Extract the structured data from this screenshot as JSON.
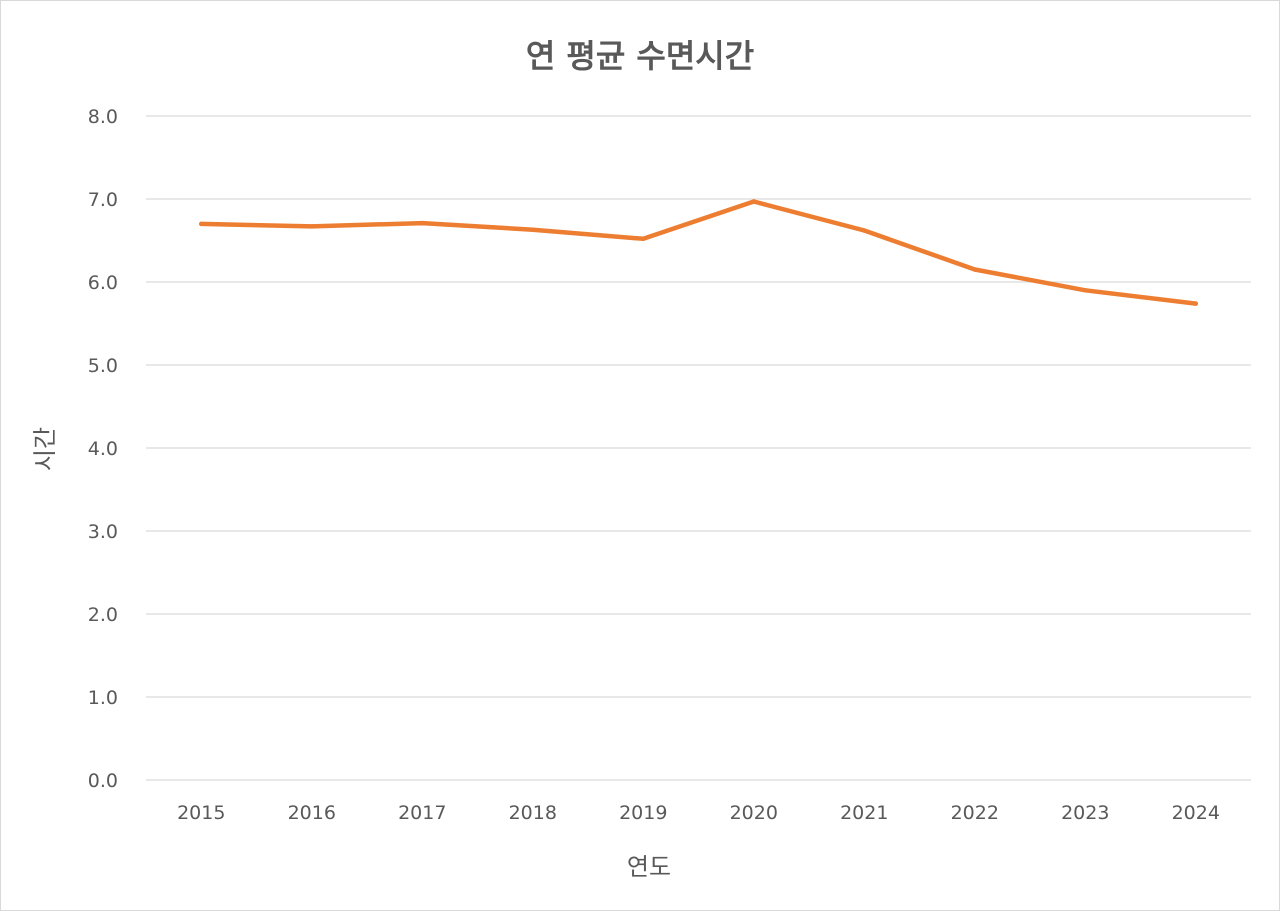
{
  "chart_data": {
    "type": "line",
    "title": "연 평균 수면시간",
    "xlabel": "연도",
    "ylabel": "시간",
    "categories": [
      "2015",
      "2016",
      "2017",
      "2018",
      "2019",
      "2020",
      "2021",
      "2022",
      "2023",
      "2024"
    ],
    "series": [
      {
        "name": "연 평균 수면시간",
        "values": [
          6.7,
          6.67,
          6.71,
          6.63,
          6.52,
          6.97,
          6.62,
          6.15,
          5.9,
          5.74
        ],
        "color": "#ed7d31"
      }
    ],
    "ylim": [
      0,
      8
    ],
    "yticks": [
      "0.0",
      "1.0",
      "2.0",
      "3.0",
      "4.0",
      "5.0",
      "6.0",
      "7.0",
      "8.0"
    ],
    "grid": true,
    "legend": "none"
  },
  "colors": {
    "text": "#595959",
    "grid": "#d9d9d9",
    "line": "#ed7d31"
  }
}
